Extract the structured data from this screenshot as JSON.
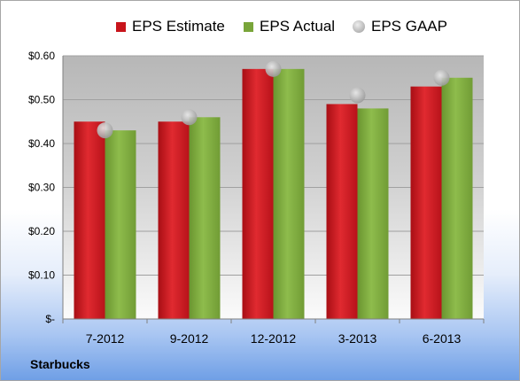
{
  "chart_data": {
    "type": "bar",
    "categories": [
      "7-2012",
      "9-2012",
      "12-2012",
      "3-2013",
      "6-2013"
    ],
    "series": [
      {
        "name": "EPS Estimate",
        "kind": "bar",
        "color": "#c8141b",
        "values": [
          0.45,
          0.45,
          0.57,
          0.49,
          0.53
        ]
      },
      {
        "name": "EPS Actual",
        "kind": "bar",
        "color": "#79a53a",
        "values": [
          0.43,
          0.46,
          0.57,
          0.48,
          0.55
        ]
      },
      {
        "name": "EPS GAAP",
        "kind": "marker",
        "color": "#b4b4b4",
        "values": [
          0.43,
          0.46,
          0.57,
          0.51,
          0.55
        ]
      }
    ],
    "ylim": [
      0,
      0.6
    ],
    "yticks": [
      0,
      0.1,
      0.2,
      0.3,
      0.4,
      0.5,
      0.6
    ],
    "ytick_labels": [
      "$-",
      "$0.10",
      "$0.20",
      "$0.30",
      "$0.40",
      "$0.50",
      "$0.60"
    ],
    "grid": true,
    "legend_position": "top"
  },
  "company_label": "Starbucks"
}
